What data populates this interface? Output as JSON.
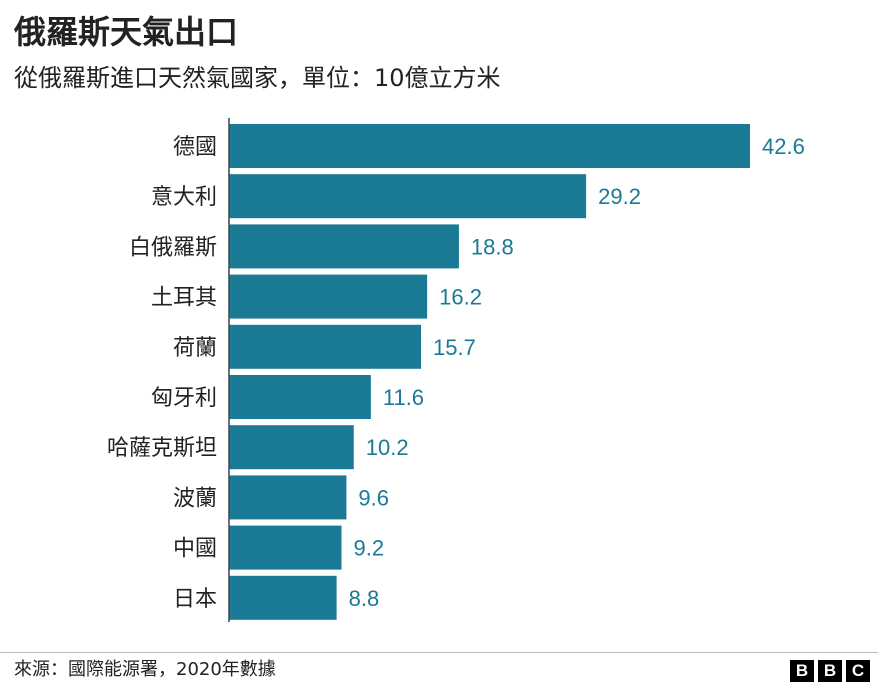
{
  "chart_data": {
    "type": "bar",
    "orientation": "horizontal",
    "title": "俄羅斯天氣出口",
    "subtitle": "從俄羅斯進口天然氣國家，單位：10億立方米",
    "categories": [
      "德國",
      "意大利",
      "白俄羅斯",
      "土耳其",
      "荷蘭",
      "匈牙利",
      "哈薩克斯坦",
      "波蘭",
      "中國",
      "日本"
    ],
    "values": [
      42.6,
      29.2,
      18.8,
      16.2,
      15.7,
      11.6,
      10.2,
      9.6,
      9.2,
      8.8
    ],
    "value_labels": [
      "42.6",
      "29.2",
      "18.8",
      "16.2",
      "15.7",
      "11.6",
      "10.2",
      "9.6",
      "9.2",
      "8.8"
    ],
    "xlim": [
      0,
      42.6
    ],
    "grid": false,
    "bar_color": "#1a7a96",
    "label_color": "#1a7a96"
  },
  "footer": {
    "source": "來源：國際能源署，2020年數據",
    "logo_letters": [
      "B",
      "B",
      "C"
    ]
  }
}
